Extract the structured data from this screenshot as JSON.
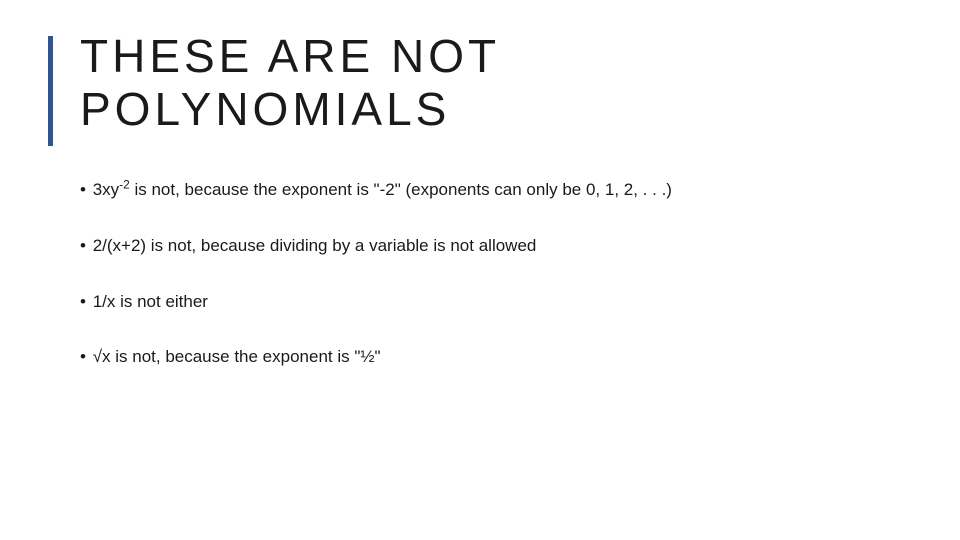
{
  "slide": {
    "accent_color": "#2f5596",
    "background_color": "#ffffff",
    "title_line1": "THESE ARE NOT",
    "title_line2": "POLYNOMIALS",
    "title_fontsize": 46,
    "title_letterspacing": 4,
    "bullet_fontsize": 17,
    "bullets": [
      {
        "prefix": "3xy",
        "sup": "-2",
        "rest": " is not, because the exponent is \"-2\" (exponents can only be 0, 1, 2, . . .)"
      },
      {
        "prefix": "2/(x+2) is not, because dividing by a variable is not allowed",
        "sup": "",
        "rest": ""
      },
      {
        "prefix": "1/x is not either",
        "sup": "",
        "rest": ""
      },
      {
        "prefix": "√x is not, because the exponent is \"½\"",
        "sup": "",
        "rest": ""
      }
    ]
  }
}
